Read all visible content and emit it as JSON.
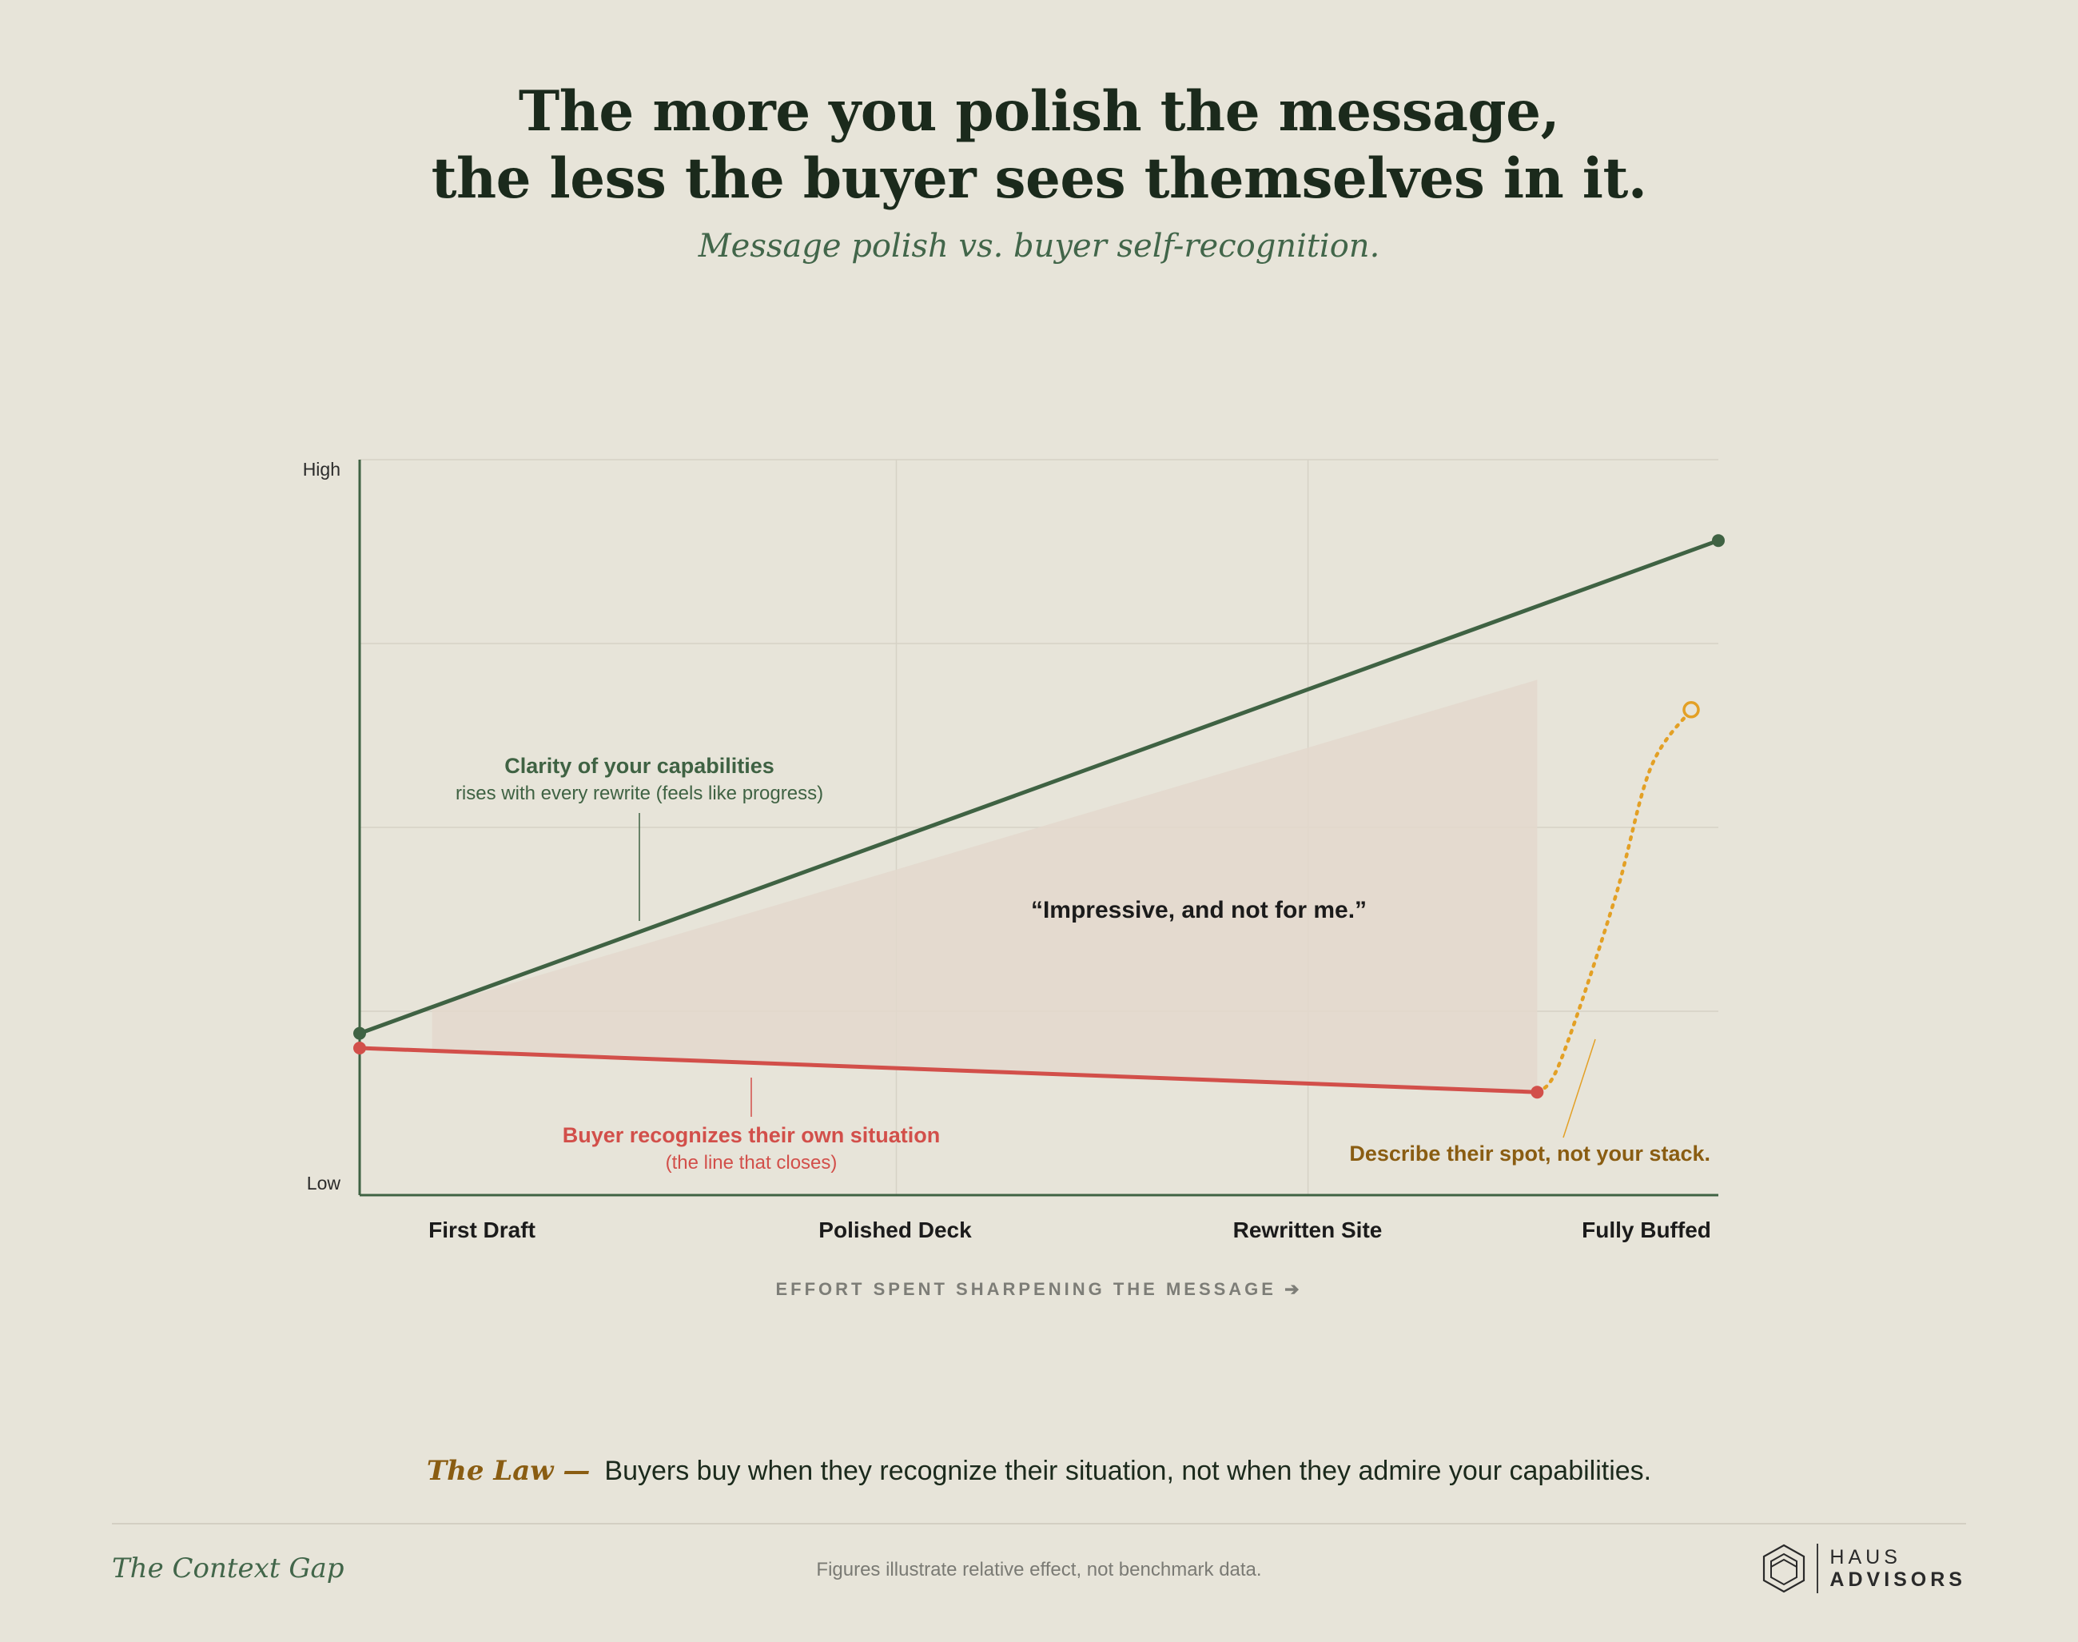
{
  "header": {
    "title_line1": "The more you polish the message,",
    "title_line2": "the less the buyer sees themselves in it.",
    "subtitle": "Message polish vs. buyer self-recognition."
  },
  "chart_data": {
    "type": "line",
    "categories": [
      "First Draft",
      "Polished Deck",
      "Rewritten Site",
      "Fully Buffed"
    ],
    "xlabel": "EFFORT SPENT SHARPENING THE MESSAGE ➔",
    "ylabel_high": "High",
    "ylabel_low": "Low",
    "ylim": [
      0,
      100
    ],
    "grid": true,
    "series": [
      {
        "name": "Clarity of your capabilities",
        "note": "rises with every rewrite (feels like progress)",
        "color": "#3f6243",
        "x": [
          0,
          3
        ],
        "values": [
          22,
          89
        ]
      },
      {
        "name": "Buyer recognizes their own situation",
        "note": "(the line that closes)",
        "color": "#d24f4a",
        "x": [
          0,
          2.6
        ],
        "values": [
          20,
          14
        ]
      },
      {
        "name": "Describe their spot, not your stack.",
        "color": "#e3a025",
        "style": "dotted",
        "x": [
          2.6,
          2.65,
          2.77,
          2.85,
          2.94
        ],
        "values": [
          14,
          18,
          40,
          58,
          66
        ]
      }
    ],
    "annotations": {
      "gap_quote": "“Impressive, and not for me.”",
      "gap_color": "#e3d8cc"
    }
  },
  "law": {
    "label": "The Law —",
    "text": "Buyers buy when they recognize their situation, not when they admire your capabilities."
  },
  "footer": {
    "series_title": "The Context Gap",
    "note": "Figures illustrate relative effect, not benchmark data.",
    "brand_line1": "HAUS",
    "brand_line2": "ADVISORS"
  },
  "colors": {
    "background": "#e7e4d9",
    "green": "#3f6243",
    "red": "#d24f4a",
    "gold": "#e3a025",
    "gold_text": "#8a5d12"
  }
}
